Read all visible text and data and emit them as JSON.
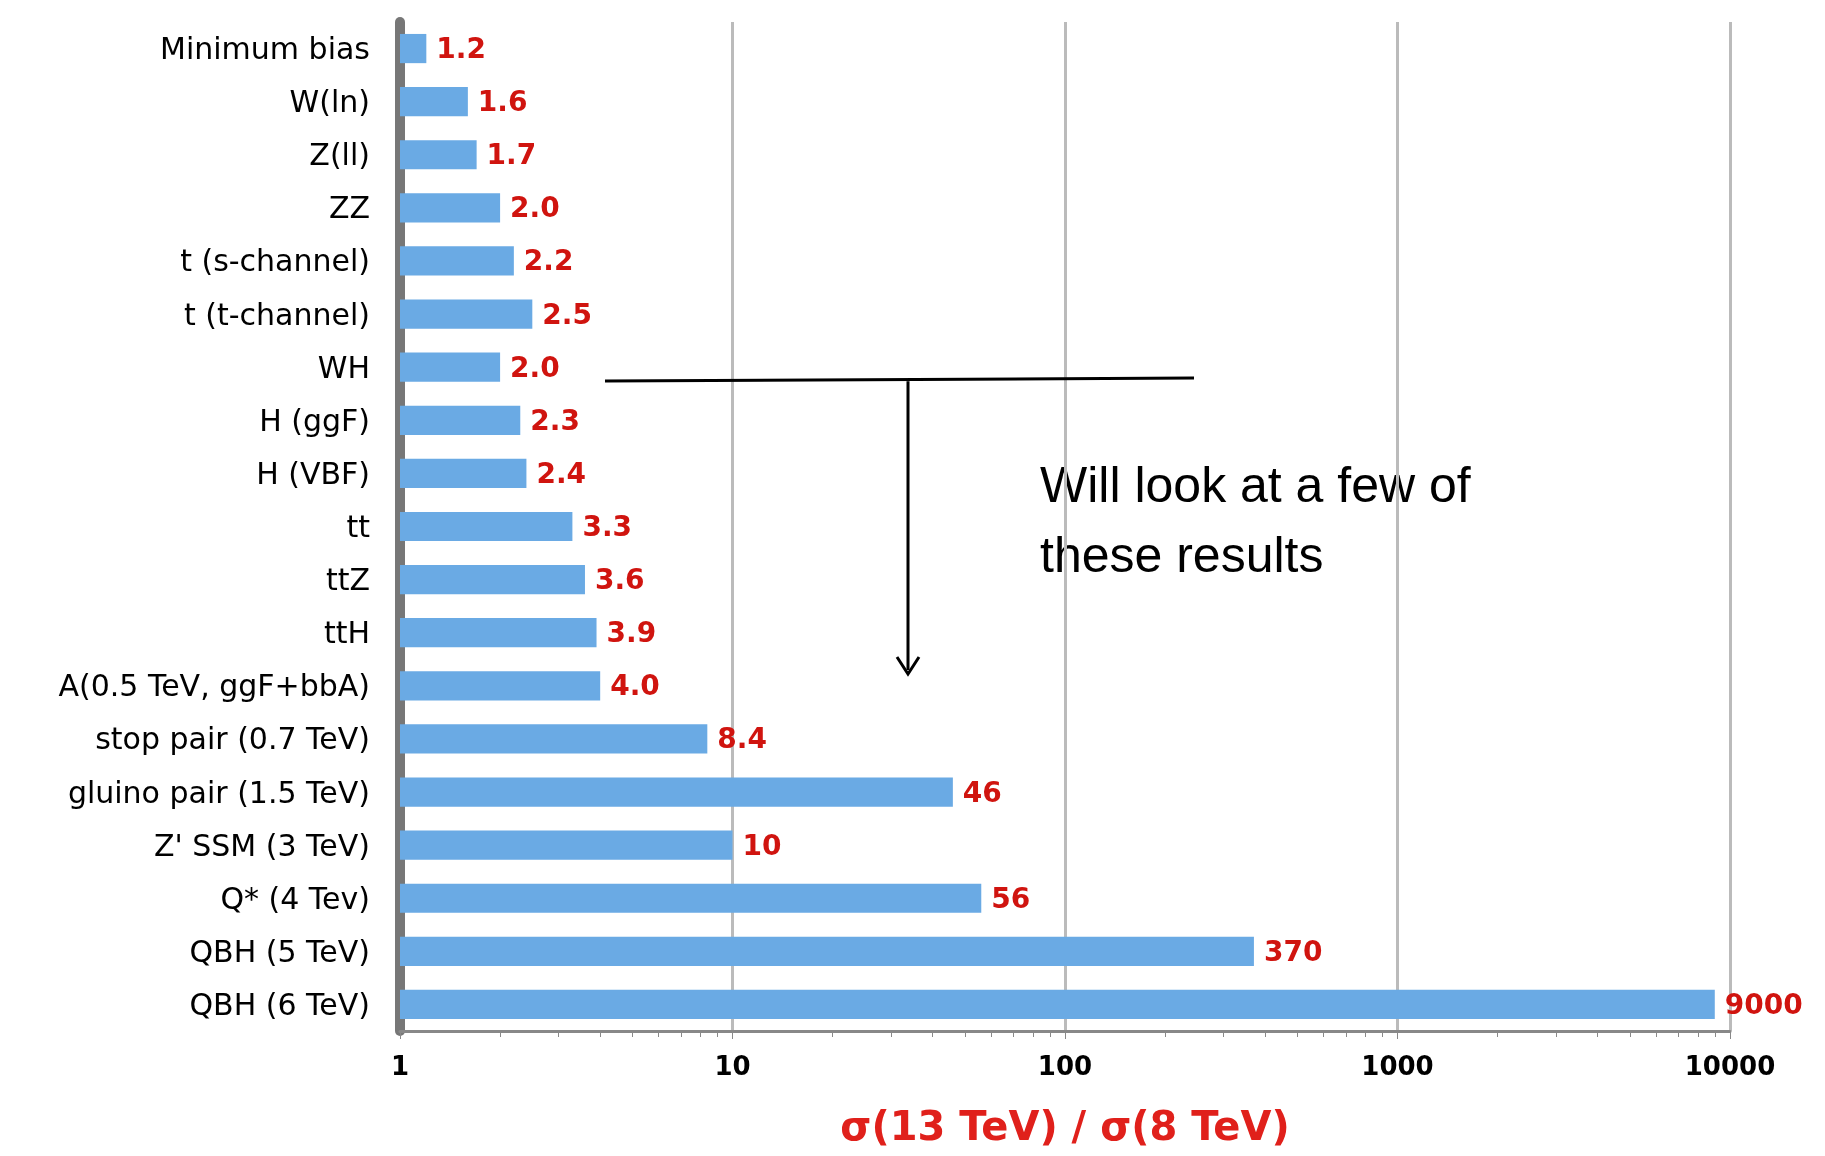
{
  "chart_data": {
    "type": "bar",
    "orientation": "horizontal",
    "xlabel": "σ(13 TeV) / σ(8 TeV)",
    "categories": [
      "Minimum bias",
      "W(ln)",
      "Z(ll)",
      "ZZ",
      "t (s-channel)",
      "t (t-channel)",
      "WH",
      "H (ggF)",
      "H (VBF)",
      "tt",
      "ttZ",
      "ttH",
      "A(0.5 TeV, ggF+bbA)",
      "stop pair (0.7 TeV)",
      "gluino pair (1.5 TeV)",
      "Z' SSM (3 TeV)",
      "Q* (4 Tev)",
      "QBH (5 TeV)",
      "QBH (6 TeV)"
    ],
    "values": [
      1.2,
      1.6,
      1.7,
      2.0,
      2.2,
      2.5,
      2.0,
      2.3,
      2.4,
      3.3,
      3.6,
      3.9,
      4.0,
      8.4,
      46,
      10,
      56,
      370,
      9000
    ],
    "value_labels": [
      "1.2",
      "1.6",
      "1.7",
      "2.0",
      "2.2",
      "2.5",
      "2.0",
      "2.3",
      "2.4",
      "3.3",
      "3.6",
      "3.9",
      "4.0",
      "8.4",
      "46",
      "10",
      "56",
      "370",
      "9000"
    ],
    "color": "#6aaae4",
    "xlim": [
      1,
      10000
    ],
    "xticks": [
      1,
      10,
      100,
      1000,
      10000
    ],
    "log": "x",
    "grid": "x",
    "annotations": [
      "Will look at a few of these results"
    ]
  }
}
